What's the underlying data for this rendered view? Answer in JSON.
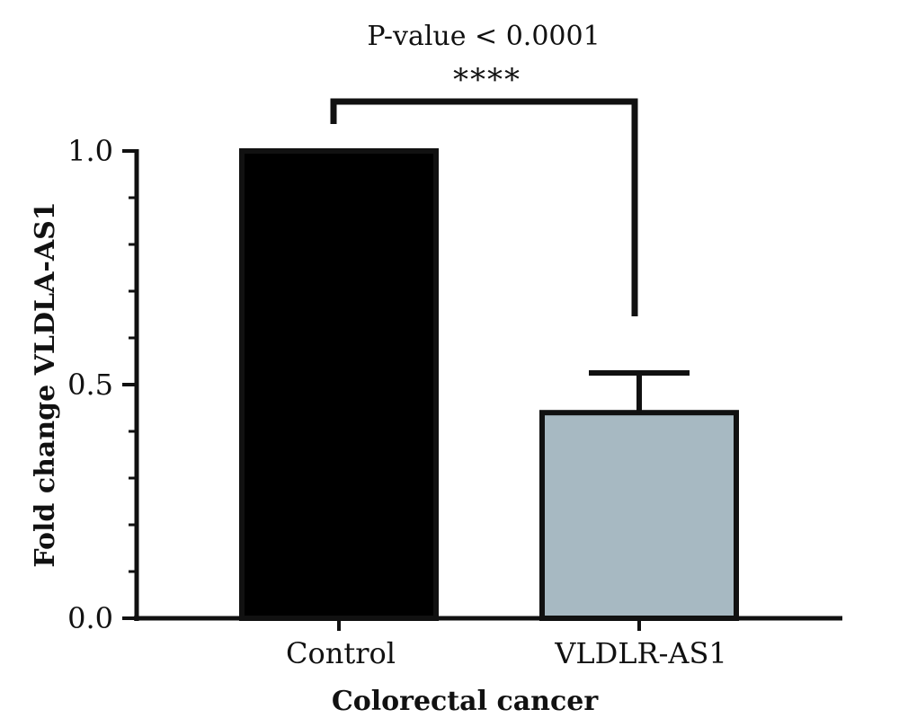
{
  "chart_data": {
    "type": "bar",
    "categories": [
      "Control",
      "VLDLR-AS1"
    ],
    "values": [
      1.0,
      0.44
    ],
    "error_upper": [
      0.0,
      0.085
    ],
    "xlabel": "Colorectal cancer",
    "ylabel": "Fold change VLDLA-AS1",
    "ylim": [
      0,
      1.0
    ],
    "yticks": [
      0.0,
      0.5,
      1.0
    ],
    "ytick_labels": [
      "0.0",
      "0.5",
      "1.0"
    ],
    "minor_ticks_per_interval": 5,
    "bar_colors": [
      "#000000",
      "#a7b9c2"
    ],
    "bar_edge_color": "#111111",
    "grid": false,
    "legend": "none",
    "annotation": {
      "text": "P-value < 0.0001",
      "significance": "****",
      "bracket_between": [
        "Control",
        "VLDLR-AS1"
      ]
    }
  }
}
